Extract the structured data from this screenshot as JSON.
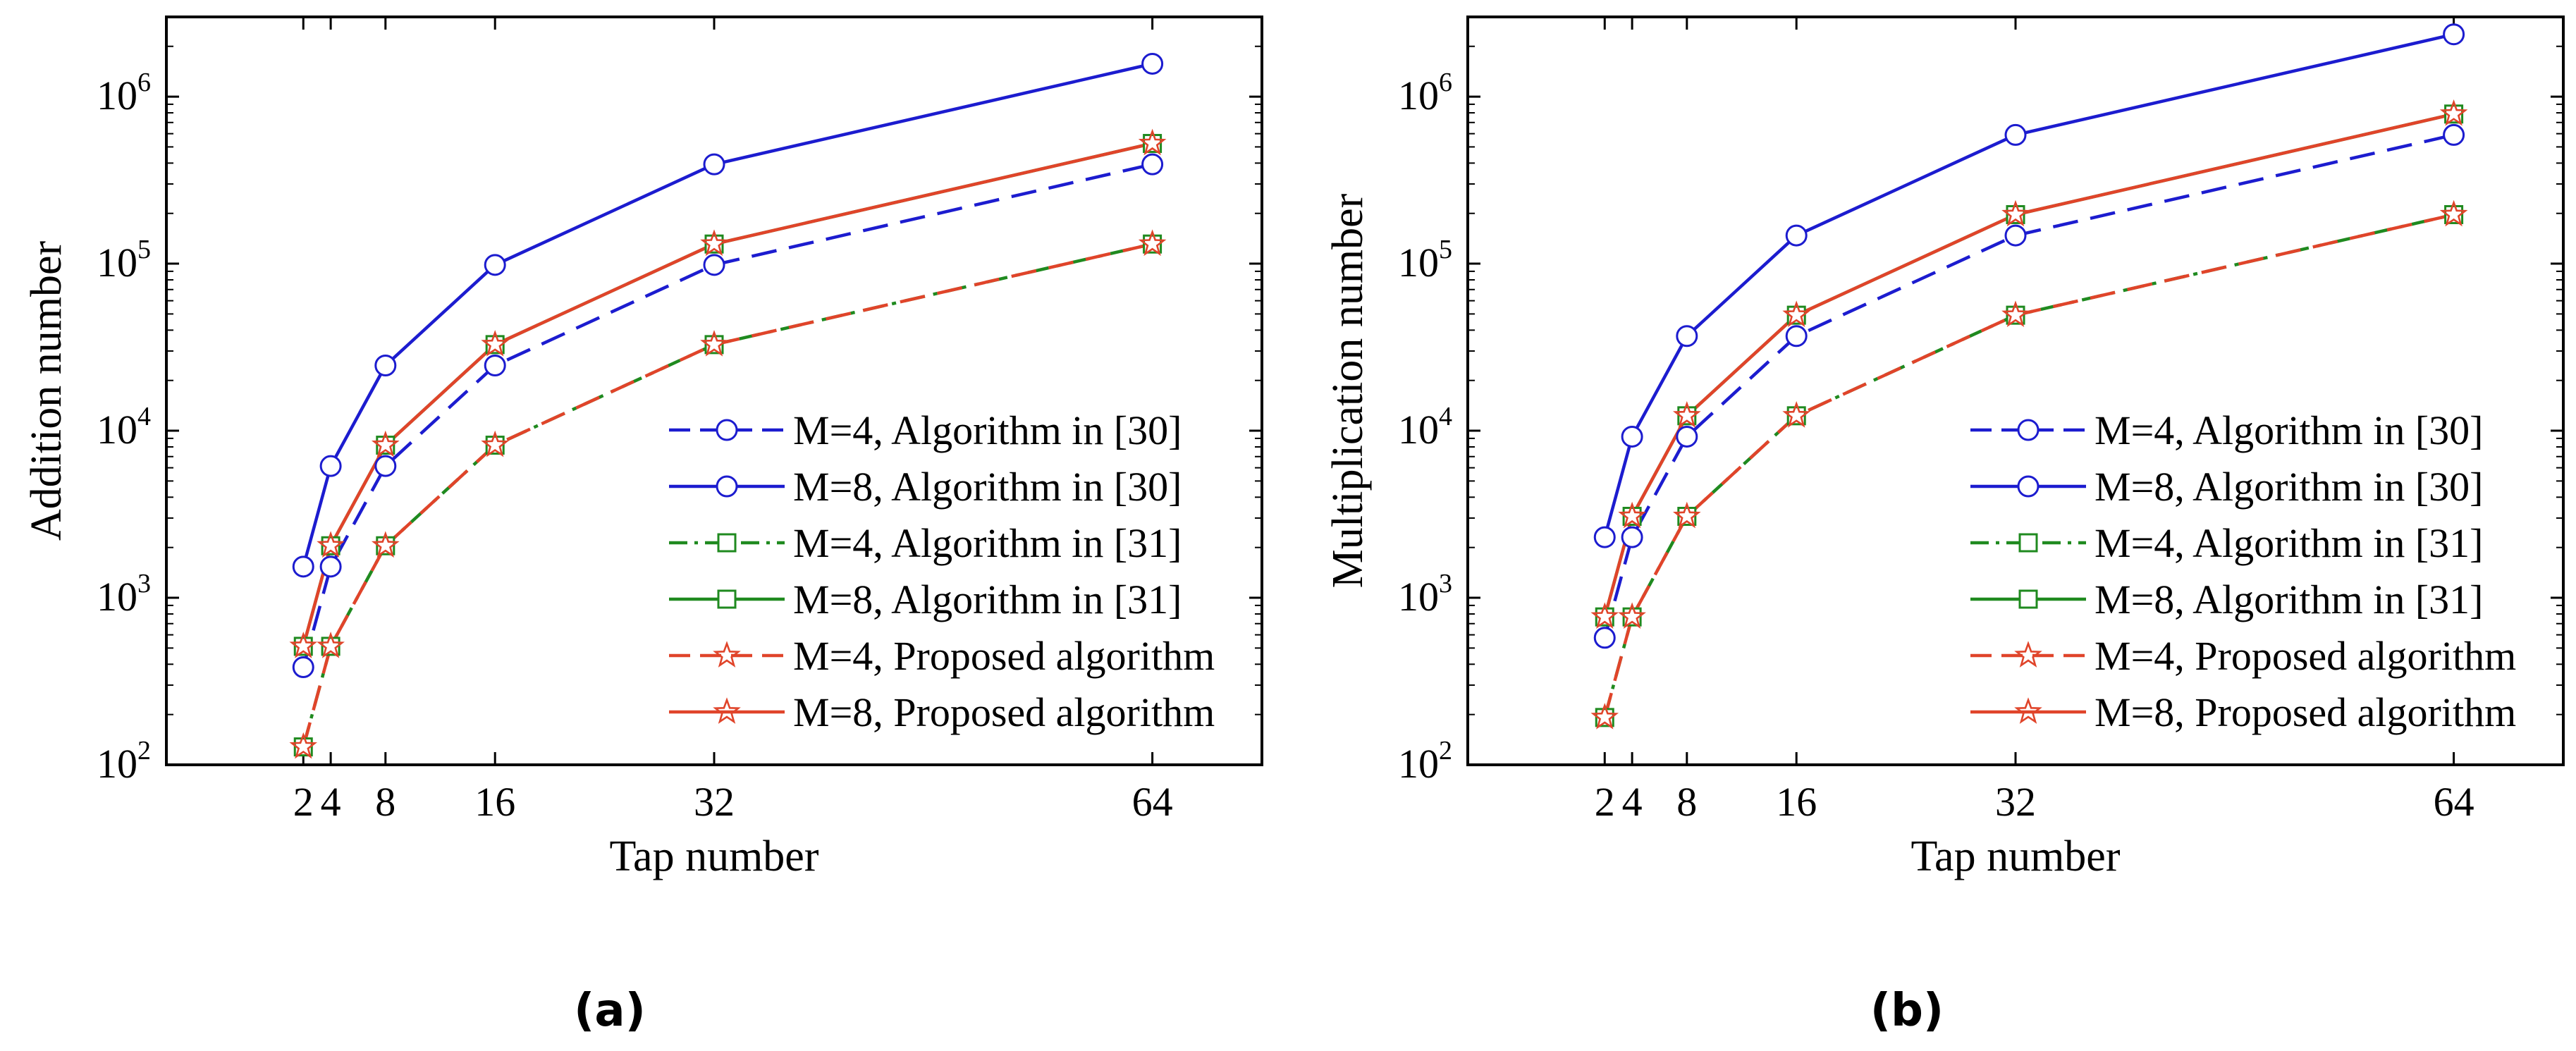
{
  "chart_data": [
    {
      "type": "line",
      "panel": "a",
      "caption": "(a)",
      "xlabel": "Tap number",
      "ylabel": "Addition number",
      "x": [
        2,
        4,
        8,
        16,
        32,
        64
      ],
      "xticks": [
        "2",
        "4",
        "8",
        "16",
        "32",
        "64"
      ],
      "xlim": [
        -8,
        72
      ],
      "yscale": "log",
      "ylim": [
        100,
        3000000
      ],
      "yticks": [
        {
          "value": 100,
          "base": "10",
          "exp": "2"
        },
        {
          "value": 1000,
          "base": "10",
          "exp": "3"
        },
        {
          "value": 10000,
          "base": "10",
          "exp": "4"
        },
        {
          "value": 100000,
          "base": "10",
          "exp": "5"
        },
        {
          "value": 1000000,
          "base": "10",
          "exp": "6"
        }
      ],
      "legend_position": "lower-right",
      "series": [
        {
          "name": "M=4, Algorithm in [30]",
          "color": "#1c1ccf",
          "dash": "dash",
          "marker": "circle",
          "values": [
            384,
            1536,
            6144,
            24576,
            98304,
            393216
          ]
        },
        {
          "name": "M=8, Algorithm in [30]",
          "color": "#1c1ccf",
          "dash": "solid",
          "marker": "circle",
          "values": [
            1536,
            6144,
            24576,
            98304,
            393216,
            1572864
          ]
        },
        {
          "name": "M=4, Algorithm in [31]",
          "color": "#1f8a1f",
          "dash": "dashdot",
          "marker": "square",
          "values": [
            128,
            512,
            2048,
            8192,
            32768,
            131072
          ]
        },
        {
          "name": "M=8, Algorithm in [31]",
          "color": "#1f8a1f",
          "dash": "solid",
          "marker": "square",
          "values": [
            512,
            2048,
            8192,
            32768,
            131072,
            524288
          ]
        },
        {
          "name": "M=4, Proposed algorithm",
          "color": "#e0442a",
          "dash": "dash",
          "marker": "star",
          "values": [
            128,
            512,
            2048,
            8192,
            32768,
            131072
          ]
        },
        {
          "name": "M=8, Proposed algorithm",
          "color": "#e0442a",
          "dash": "solid",
          "marker": "star",
          "values": [
            512,
            2048,
            8192,
            32768,
            131072,
            524288
          ]
        }
      ]
    },
    {
      "type": "line",
      "panel": "b",
      "caption": "(b)",
      "xlabel": "Tap number",
      "ylabel": "Multiplication number",
      "x": [
        2,
        4,
        8,
        16,
        32,
        64
      ],
      "xticks": [
        "2",
        "4",
        "8",
        "16",
        "32",
        "64"
      ],
      "xlim": [
        -8,
        72
      ],
      "yscale": "log",
      "ylim": [
        100,
        3000000
      ],
      "yticks": [
        {
          "value": 100,
          "base": "10",
          "exp": "2"
        },
        {
          "value": 1000,
          "base": "10",
          "exp": "3"
        },
        {
          "value": 10000,
          "base": "10",
          "exp": "4"
        },
        {
          "value": 100000,
          "base": "10",
          "exp": "5"
        },
        {
          "value": 1000000,
          "base": "10",
          "exp": "6"
        }
      ],
      "legend_position": "lower-right",
      "series": [
        {
          "name": "M=4, Algorithm in [30]",
          "color": "#1c1ccf",
          "dash": "dash",
          "marker": "circle",
          "values": [
            576,
            2304,
            9216,
            36864,
            147456,
            589824
          ]
        },
        {
          "name": "M=8, Algorithm in [30]",
          "color": "#1c1ccf",
          "dash": "solid",
          "marker": "circle",
          "values": [
            2304,
            9216,
            36864,
            147456,
            589824,
            2359296
          ]
        },
        {
          "name": "M=4, Algorithm in [31]",
          "color": "#1f8a1f",
          "dash": "dashdot",
          "marker": "square",
          "values": [
            192,
            768,
            3072,
            12288,
            49152,
            196608
          ]
        },
        {
          "name": "M=8, Algorithm in [31]",
          "color": "#1f8a1f",
          "dash": "solid",
          "marker": "square",
          "values": [
            768,
            3072,
            12288,
            49152,
            196608,
            786432
          ]
        },
        {
          "name": "M=4, Proposed algorithm",
          "color": "#e0442a",
          "dash": "dash",
          "marker": "star",
          "values": [
            192,
            768,
            3072,
            12288,
            49152,
            196608
          ]
        },
        {
          "name": "M=8, Proposed algorithm",
          "color": "#e0442a",
          "dash": "solid",
          "marker": "star",
          "values": [
            768,
            3072,
            12288,
            49152,
            196608,
            786432
          ]
        }
      ]
    }
  ]
}
